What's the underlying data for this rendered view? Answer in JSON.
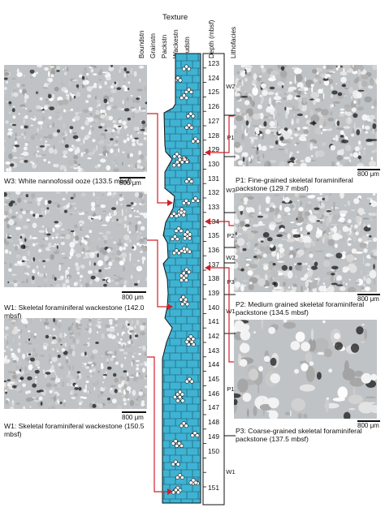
{
  "header": {
    "texture_title": "Texture",
    "texture_columns": [
      "Boundstn",
      "Grainstn",
      "Packstn",
      "Wackestn",
      "Mudstn"
    ],
    "depth_title": "Depth (mbsf)",
    "lithofacies_title": "Lithofacies"
  },
  "depth_scale": [
    "123",
    "124",
    "125",
    "126",
    "127",
    "128",
    "129",
    "130",
    "131",
    "132",
    "133",
    "134",
    "135",
    "136",
    "137",
    "138",
    "139",
    "140",
    "141",
    "142",
    "143",
    "144",
    "145",
    "146",
    "147",
    "148",
    "149",
    "150",
    "151"
  ],
  "lithofacies": [
    "W2",
    "P1",
    "W3",
    "P2",
    "W2",
    "P3",
    "W1",
    "P1",
    "W1"
  ],
  "photos": [
    {
      "caption": "W3: White nannofossil ooze  (133.5 mbsf)",
      "scale": "800 μm"
    },
    {
      "caption": "W1: Skeletal foraminiferal wackestone (142.0 mbsf)",
      "scale": "800 μm"
    },
    {
      "caption": "W1: Skeletal foraminiferal wackestone (150.5 mbsf)",
      "scale": "800 μm"
    },
    {
      "caption": "P1: Fine-grained skeletal foraminiferal packstone (129.7 mbsf)",
      "scale": "800 μm"
    },
    {
      "caption": "P2: Medium grained skeletal foraminiferal packstone (134.5 mbsf)",
      "scale": "800 μm"
    },
    {
      "caption": "P3: Coarse-grained skeletal foraminiferal packstone (137.5 mbsf)",
      "scale": "800 μm"
    }
  ],
  "colors": {
    "column_fill": "#3fb3d3",
    "brick_lines": "#1b4e5e",
    "arrow": "#d0202a",
    "photo_bg": "#bfc3c6",
    "grain": "#f3f3f3"
  }
}
